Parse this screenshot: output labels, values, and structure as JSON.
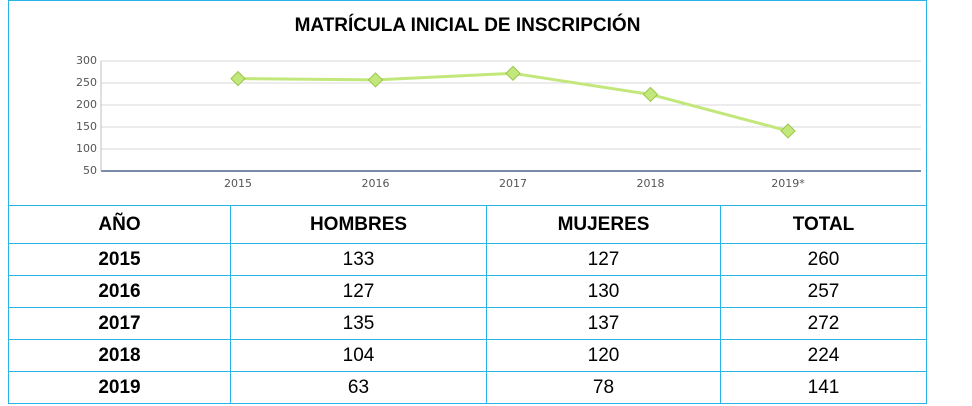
{
  "title": "MATRÍCULA INICIAL DE INSCRIPCIÓN",
  "chart_data": {
    "type": "line",
    "categories": [
      "2015",
      "2016",
      "2017",
      "2018",
      "2019*"
    ],
    "values": [
      260,
      257,
      272,
      224,
      141
    ],
    "color": "#c2e77a",
    "ylim": [
      50,
      300
    ],
    "yticks": [
      50,
      100,
      150,
      200,
      250,
      300
    ],
    "grid": true
  },
  "table": {
    "header": [
      "AÑO",
      "HOMBRES",
      "MUJERES",
      "TOTAL"
    ],
    "rows": [
      [
        "2015",
        "133",
        "127",
        "260"
      ],
      [
        "2016",
        "127",
        "130",
        "257"
      ],
      [
        "2017",
        "135",
        "137",
        "272"
      ],
      [
        "2018",
        "104",
        "120",
        "224"
      ],
      [
        "2019",
        "63",
        "78",
        "141"
      ]
    ]
  }
}
